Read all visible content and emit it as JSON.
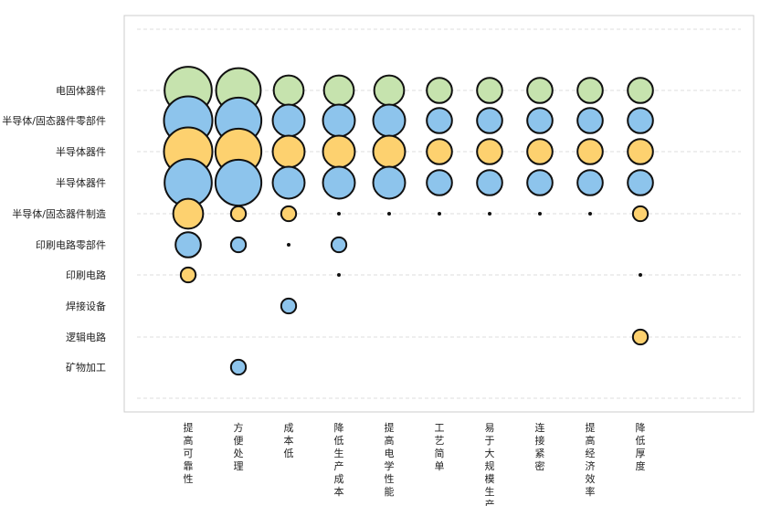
{
  "chart_data": {
    "type": "bubble",
    "title": "",
    "xlabel": "",
    "ylabel": "",
    "grid": true,
    "legend": "none",
    "colors": {
      "green": "#c6e3ae",
      "blue": "#8dc4ec",
      "yellow": "#fdd16f",
      "edge": "#111111"
    },
    "x_categories": [
      "提高可靠性",
      "方便处理",
      "成本低",
      "降低生产成本",
      "提高电学性能",
      "工艺简单",
      "易于大规模生产",
      "连接紧密",
      "提高经济效率",
      "降低厚度"
    ],
    "y_categories": [
      "电固体器件",
      "半导体/固态器件零部件",
      "半导体器件",
      "半导体器件",
      "半导体/固态器件制造",
      "印刷电路零部件",
      "印刷电路",
      "焊接设备",
      "逻辑电路",
      "矿物加工"
    ],
    "points": [
      {
        "row": 0,
        "color": "green",
        "values": [
          17,
          15,
          6,
          6,
          6,
          4,
          4,
          4,
          4,
          4
        ]
      },
      {
        "row": 1,
        "color": "blue",
        "values": [
          18,
          16,
          7,
          7,
          7,
          4,
          4,
          4,
          4,
          4
        ]
      },
      {
        "row": 2,
        "color": "yellow",
        "values": [
          18,
          16,
          7,
          7,
          7,
          4,
          4,
          4,
          4,
          4
        ]
      },
      {
        "row": 3,
        "color": "blue",
        "values": [
          17,
          16,
          7,
          7,
          7,
          4,
          4,
          4,
          4,
          4
        ]
      },
      {
        "row": 4,
        "color": "yellow",
        "values": [
          6,
          1,
          1,
          0,
          0,
          0,
          0,
          0,
          0,
          1
        ]
      },
      {
        "row": 5,
        "color": "blue",
        "values": [
          4,
          1,
          0,
          1,
          null,
          null,
          null,
          null,
          null,
          null
        ]
      },
      {
        "row": 6,
        "color": "yellow",
        "values": [
          1,
          null,
          null,
          0,
          null,
          null,
          null,
          null,
          null,
          0
        ]
      },
      {
        "row": 7,
        "color": "blue",
        "values": [
          null,
          null,
          1,
          null,
          null,
          null,
          null,
          null,
          null,
          null
        ]
      },
      {
        "row": 8,
        "color": "yellow",
        "values": [
          null,
          null,
          null,
          null,
          null,
          null,
          null,
          null,
          null,
          1
        ]
      },
      {
        "row": 9,
        "color": "blue",
        "values": [
          null,
          1,
          null,
          null,
          null,
          null,
          null,
          null,
          null,
          null
        ]
      }
    ]
  }
}
